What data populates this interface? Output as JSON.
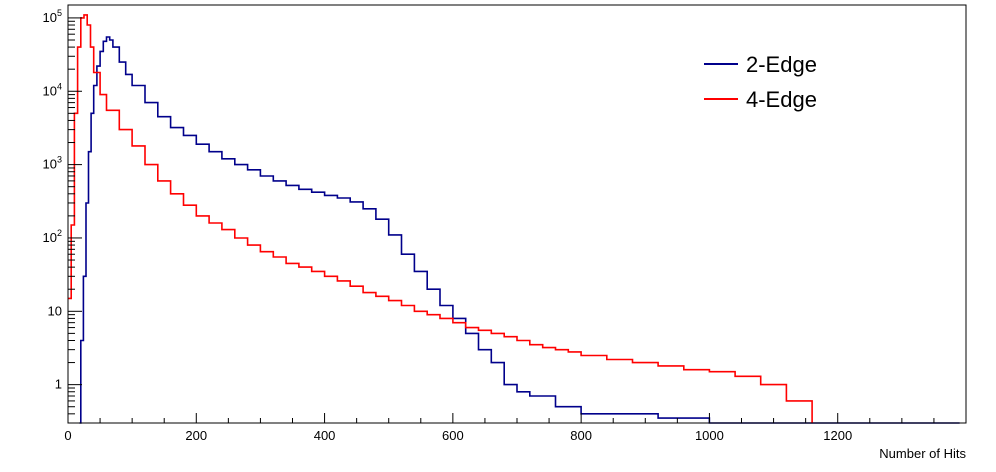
{
  "chart_data": {
    "type": "line",
    "title": "",
    "xlabel": "Number of Hits",
    "ylabel": "",
    "xlim": [
      0,
      1400
    ],
    "ylim": [
      0.3,
      150000
    ],
    "yscale": "log",
    "x_ticks": [
      0,
      200,
      400,
      600,
      800,
      1000,
      1200
    ],
    "y_ticks": [
      {
        "value": 1,
        "label": "1"
      },
      {
        "value": 10,
        "label": "10"
      },
      {
        "value": 100,
        "label": "10",
        "exp": "2"
      },
      {
        "value": 1000,
        "label": "10",
        "exp": "3"
      },
      {
        "value": 10000,
        "label": "10",
        "exp": "4"
      },
      {
        "value": 100000,
        "label": "10",
        "exp": "5"
      }
    ],
    "legend_position": "top-right",
    "series": [
      {
        "name": "2-Edge",
        "color": "#00008b",
        "points": [
          [
            18,
            0.3
          ],
          [
            20,
            4
          ],
          [
            24,
            30
          ],
          [
            28,
            300
          ],
          [
            32,
            1500
          ],
          [
            36,
            5000
          ],
          [
            40,
            12000
          ],
          [
            45,
            22000
          ],
          [
            50,
            35000
          ],
          [
            55,
            48000
          ],
          [
            60,
            55000
          ],
          [
            65,
            50000
          ],
          [
            70,
            40000
          ],
          [
            80,
            25000
          ],
          [
            90,
            17000
          ],
          [
            100,
            12000
          ],
          [
            120,
            7000
          ],
          [
            140,
            4500
          ],
          [
            160,
            3200
          ],
          [
            180,
            2500
          ],
          [
            200,
            1900
          ],
          [
            220,
            1500
          ],
          [
            240,
            1200
          ],
          [
            260,
            1000
          ],
          [
            280,
            850
          ],
          [
            300,
            700
          ],
          [
            320,
            600
          ],
          [
            340,
            520
          ],
          [
            360,
            460
          ],
          [
            380,
            420
          ],
          [
            400,
            380
          ],
          [
            420,
            350
          ],
          [
            440,
            310
          ],
          [
            460,
            250
          ],
          [
            480,
            180
          ],
          [
            500,
            110
          ],
          [
            520,
            60
          ],
          [
            540,
            35
          ],
          [
            560,
            20
          ],
          [
            580,
            12
          ],
          [
            600,
            8
          ],
          [
            620,
            5
          ],
          [
            640,
            3
          ],
          [
            660,
            2
          ],
          [
            680,
            1
          ],
          [
            700,
            0.8
          ],
          [
            720,
            0.7
          ],
          [
            760,
            0.5
          ],
          [
            800,
            0.4
          ],
          [
            860,
            0.4
          ],
          [
            920,
            0.35
          ],
          [
            1000,
            0.3
          ],
          [
            1100,
            0.3
          ],
          [
            1200,
            0.3
          ],
          [
            1300,
            0.3
          ],
          [
            1390,
            0.3
          ]
        ]
      },
      {
        "name": "4-Edge",
        "color": "#ff0000",
        "points": [
          [
            0,
            15
          ],
          [
            5,
            150
          ],
          [
            10,
            5000
          ],
          [
            15,
            40000
          ],
          [
            20,
            100000
          ],
          [
            25,
            110000
          ],
          [
            30,
            80000
          ],
          [
            35,
            40000
          ],
          [
            40,
            18000
          ],
          [
            50,
            9000
          ],
          [
            60,
            5500
          ],
          [
            80,
            3000
          ],
          [
            100,
            1800
          ],
          [
            120,
            1000
          ],
          [
            140,
            600
          ],
          [
            160,
            400
          ],
          [
            180,
            280
          ],
          [
            200,
            200
          ],
          [
            220,
            160
          ],
          [
            240,
            130
          ],
          [
            260,
            100
          ],
          [
            280,
            80
          ],
          [
            300,
            65
          ],
          [
            320,
            55
          ],
          [
            340,
            45
          ],
          [
            360,
            40
          ],
          [
            380,
            35
          ],
          [
            400,
            30
          ],
          [
            420,
            26
          ],
          [
            440,
            22
          ],
          [
            460,
            18
          ],
          [
            480,
            16
          ],
          [
            500,
            14
          ],
          [
            520,
            12
          ],
          [
            540,
            10
          ],
          [
            560,
            9
          ],
          [
            580,
            8
          ],
          [
            600,
            7
          ],
          [
            620,
            6
          ],
          [
            640,
            5.5
          ],
          [
            660,
            5
          ],
          [
            680,
            4.5
          ],
          [
            700,
            4
          ],
          [
            720,
            3.5
          ],
          [
            740,
            3.2
          ],
          [
            760,
            3
          ],
          [
            780,
            2.8
          ],
          [
            800,
            2.5
          ],
          [
            840,
            2.2
          ],
          [
            880,
            2
          ],
          [
            920,
            1.8
          ],
          [
            960,
            1.6
          ],
          [
            1000,
            1.5
          ],
          [
            1040,
            1.3
          ],
          [
            1080,
            1
          ],
          [
            1120,
            0.6
          ],
          [
            1160,
            0.3
          ]
        ]
      }
    ]
  }
}
